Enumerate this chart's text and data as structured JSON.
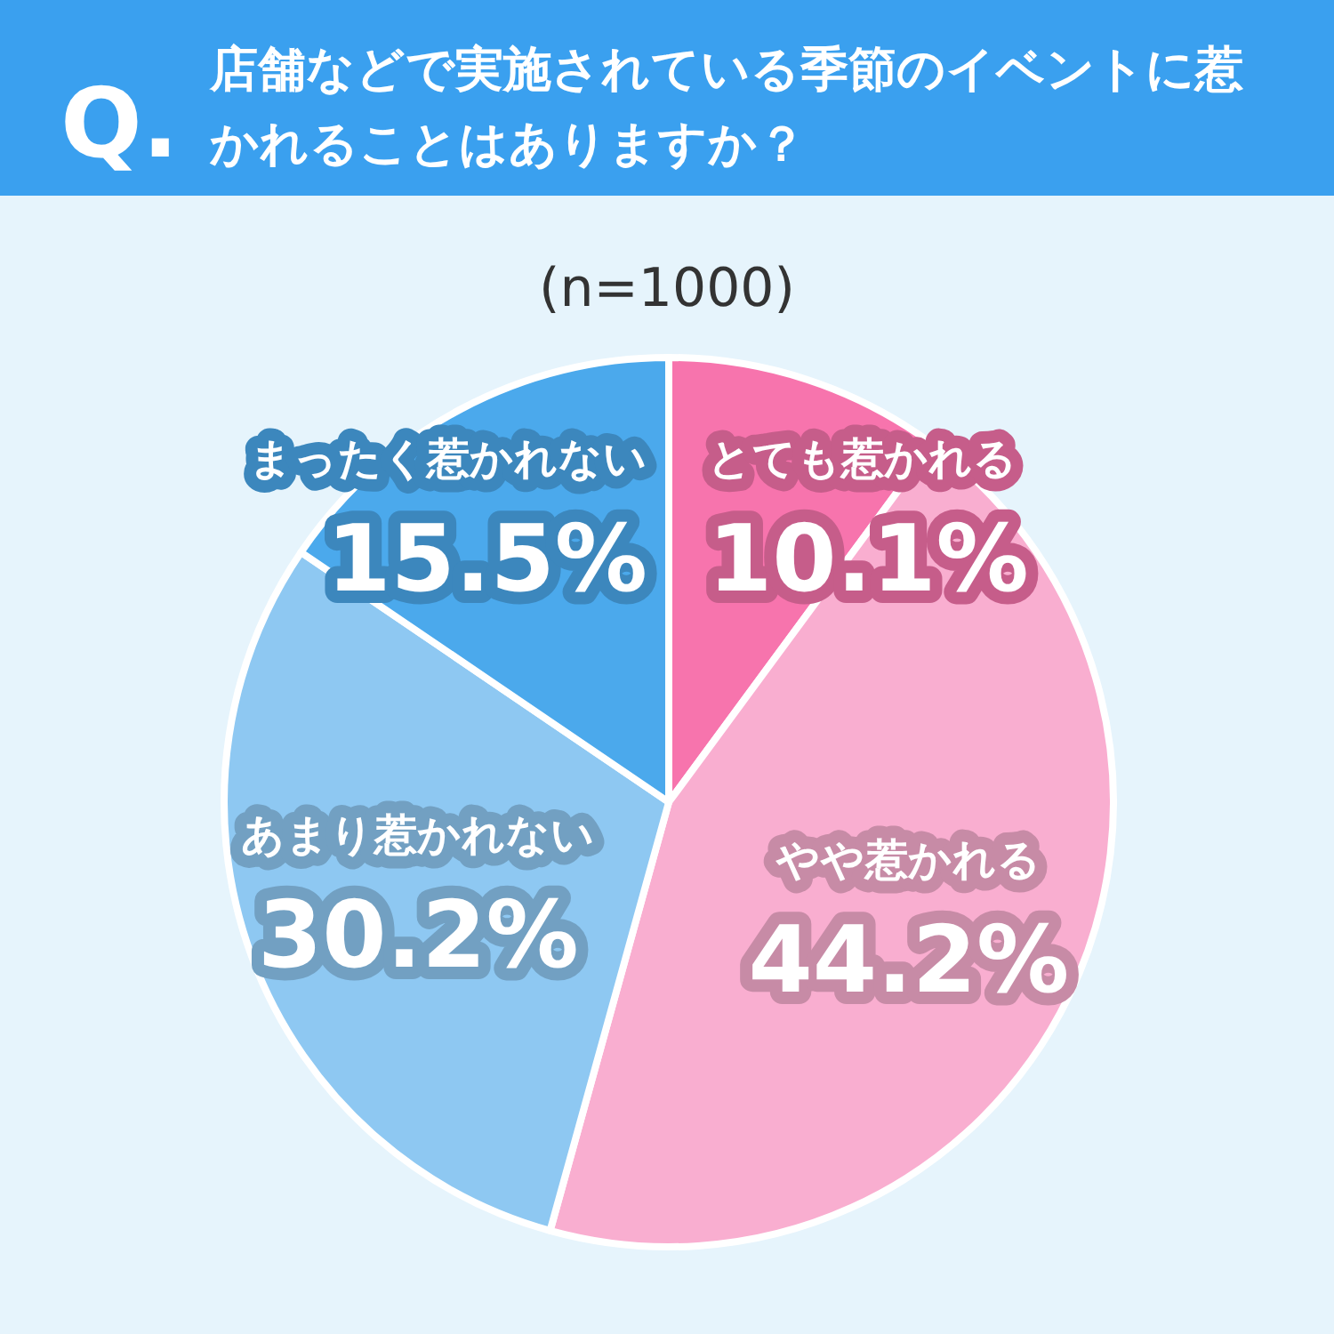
{
  "chart_data": {
    "type": "pie",
    "title": "店舗などで実施されている季節のイベントに惹かれることはありますか？",
    "subtitle": "(n=1000)",
    "annotations": [
      "Q."
    ],
    "categories": [
      "とても惹かれる",
      "やや惹かれる",
      "あまり惹かれない",
      "まったく惹かれない"
    ],
    "values": [
      10.1,
      44.2,
      30.2,
      15.5
    ],
    "value_labels": [
      "10.1%",
      "44.2%",
      "30.2%",
      "15.5%"
    ],
    "colors": [
      "#f774ad",
      "#f9aed0",
      "#8ec8f2",
      "#4ba9ec"
    ],
    "legend": false
  }
}
